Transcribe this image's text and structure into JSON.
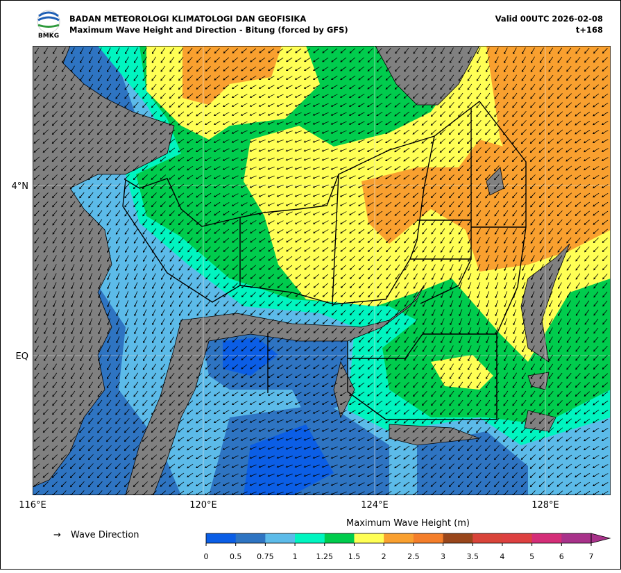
{
  "header": {
    "logo": "BMKG",
    "org": "BADAN METEOROLOGI KLIMATOLOGI DAN GEOFISIKA",
    "title": "Maximum Wave Height and Direction - Bitung (forced by GFS)",
    "valid": "Valid 00UTC 2026-02-08",
    "step": "t+168"
  },
  "map": {
    "lat_labels": [
      "4°N",
      "EQ"
    ],
    "lon_labels": [
      "116°E",
      "120°E",
      "124°E",
      "128°E"
    ]
  },
  "legend": {
    "arrow": "→",
    "label": "Wave Direction"
  },
  "colorbar": {
    "title": "Maximum Wave Height (m)",
    "labels": [
      "0",
      "0.5",
      "0.75",
      "1",
      "1.25",
      "1.5",
      "2",
      "2.5",
      "3",
      "3.5",
      "4",
      "5",
      "6",
      "7"
    ],
    "colors": [
      "#0b5ee6",
      "#2e74c2",
      "#5cbbe9",
      "#00f5c0",
      "#00cc4d",
      "#ffff55",
      "#f9a02f",
      "#f47e2a",
      "#99461b",
      "#d9443a",
      "#dd4040",
      "#d42e78",
      "#a8328a"
    ]
  }
}
